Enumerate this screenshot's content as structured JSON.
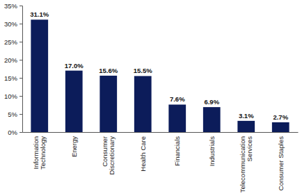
{
  "chart_data": {
    "type": "bar",
    "categories": [
      "Information Technology",
      "Energy",
      "Consumer Discretionary",
      "Health Care",
      "Financials",
      "Industrials",
      "Telecommunication Services",
      "Consumer Staples"
    ],
    "values": [
      31.1,
      17.0,
      15.6,
      15.5,
      7.6,
      6.9,
      3.1,
      2.7
    ],
    "value_labels": [
      "31.1%",
      "17.0%",
      "15.6%",
      "15.5%",
      "7.6%",
      "6.9%",
      "3.1%",
      "2.7%"
    ],
    "color": "#0c1c5a",
    "ylim": [
      0,
      35
    ],
    "yticks": [
      {
        "value": 0,
        "label": "0%"
      },
      {
        "value": 5,
        "label": "5%"
      },
      {
        "value": 10,
        "label": "10%"
      },
      {
        "value": 15,
        "label": "15%"
      },
      {
        "value": 20,
        "label": "20%"
      },
      {
        "value": 25,
        "label": "25%"
      },
      {
        "value": 30,
        "label": "30%"
      },
      {
        "value": 35,
        "label": "35%"
      }
    ],
    "grid": false,
    "data_labels": true
  }
}
